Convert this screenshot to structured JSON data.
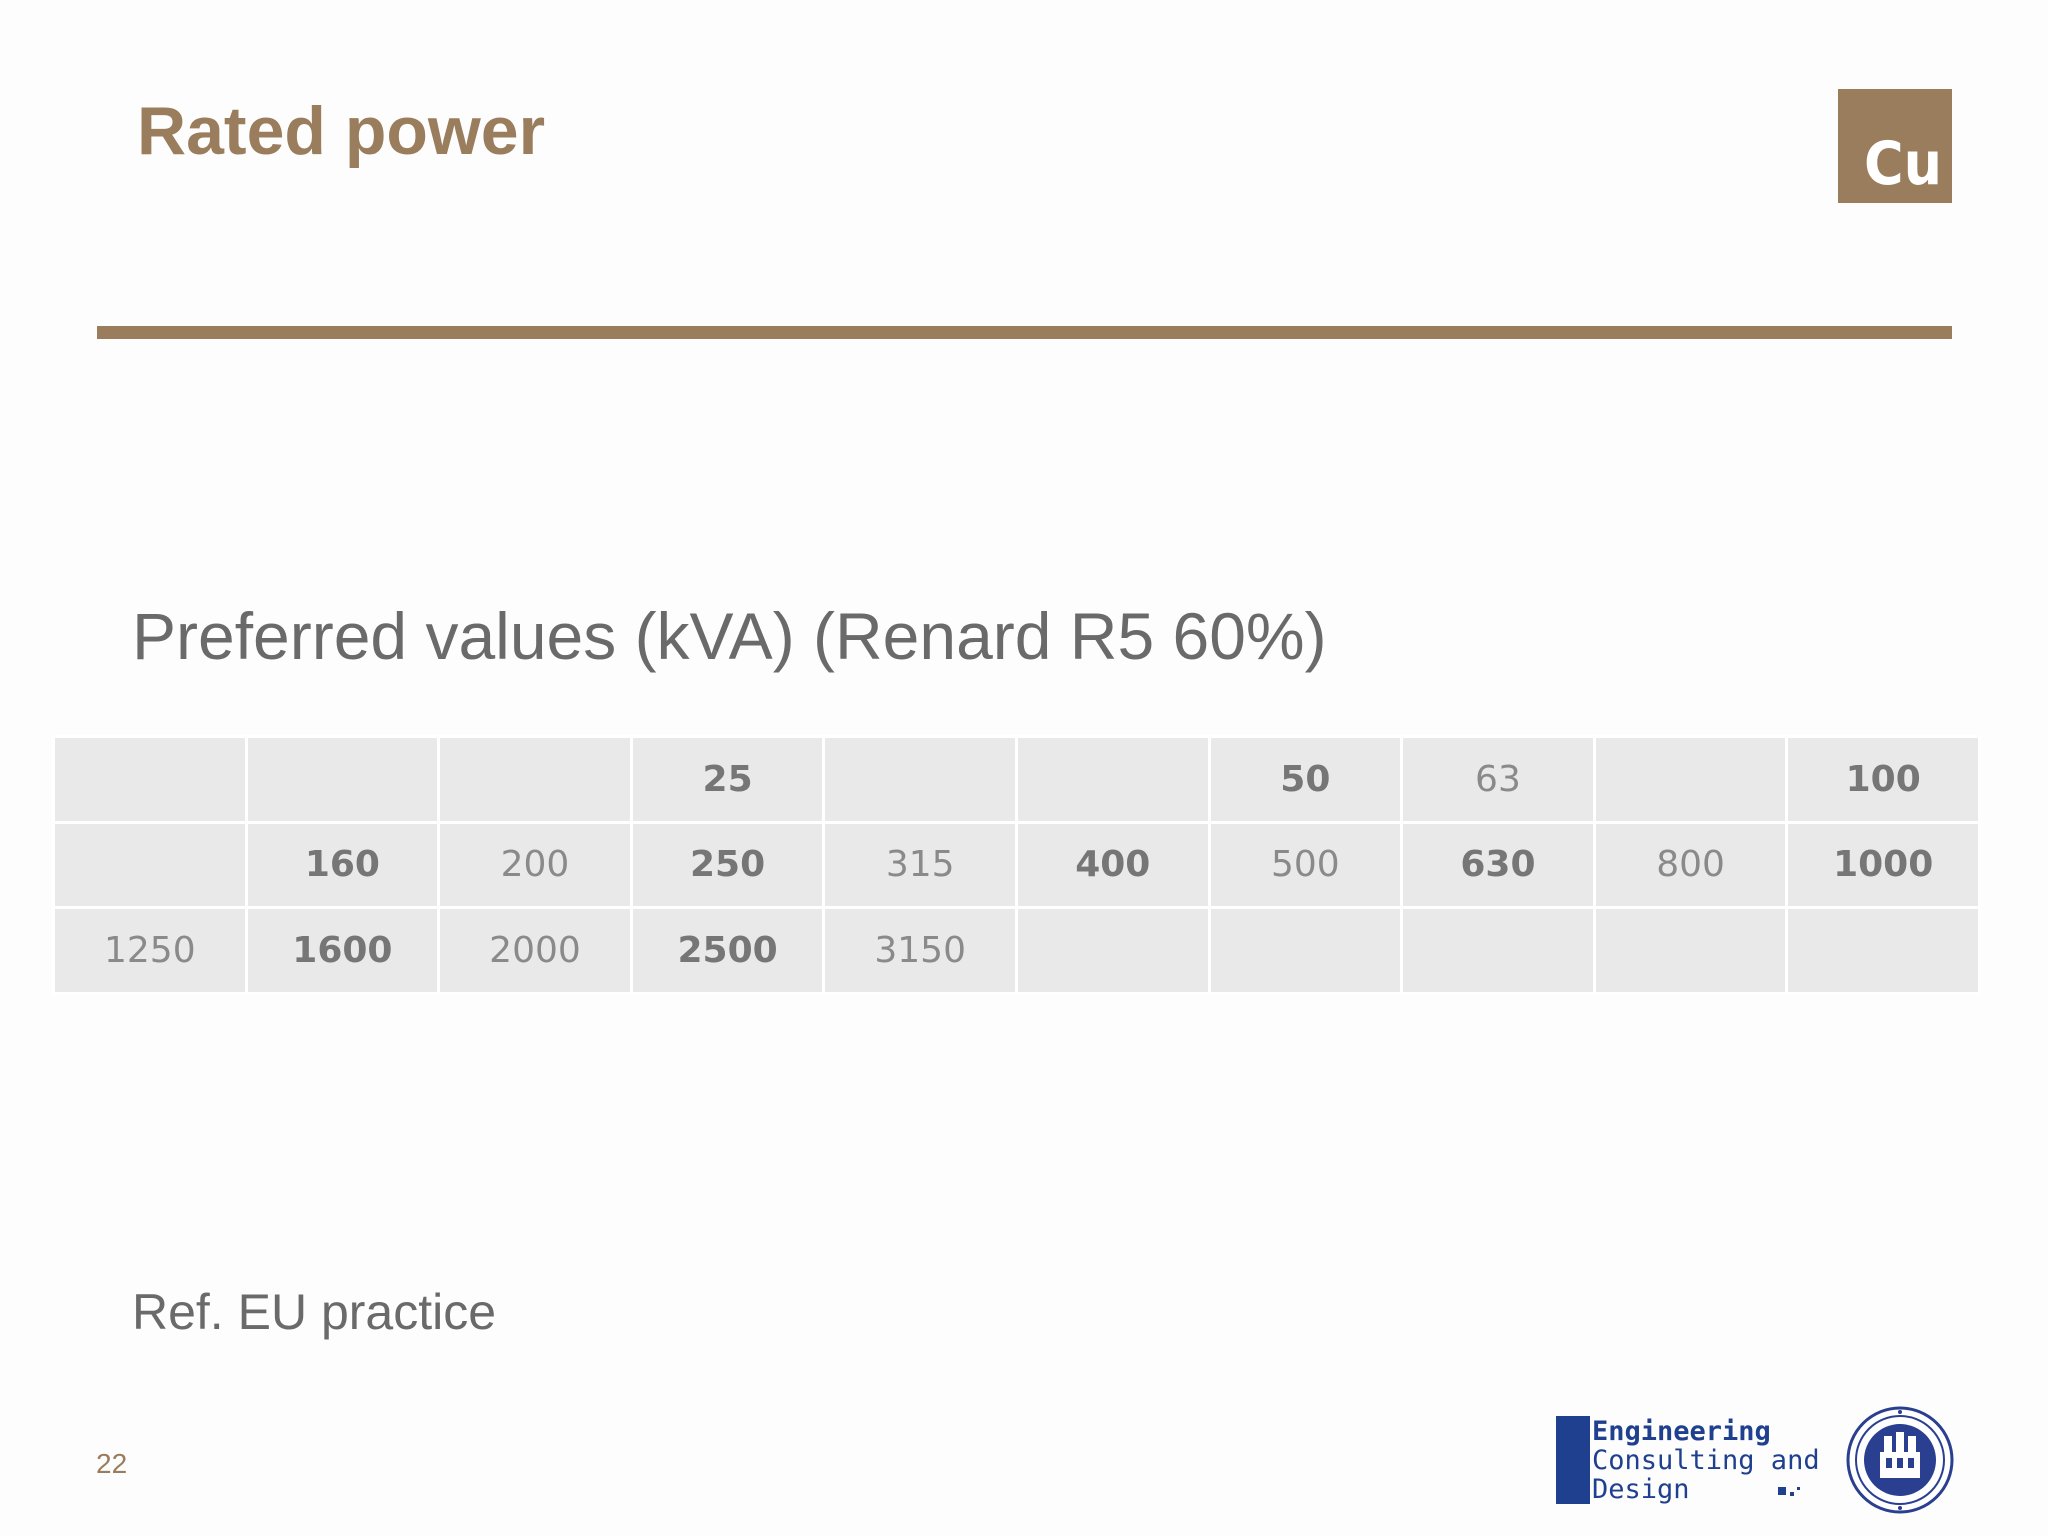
{
  "slide": {
    "title": "Rated power",
    "badge": "Cu",
    "subtitle": "Preferred values (kVA) (Renard R5 60%)",
    "footer_ref": "Ref. EU practice",
    "page_number": "22"
  },
  "table": {
    "rows": [
      [
        {
          "text": "",
          "bold": false
        },
        {
          "text": "",
          "bold": false
        },
        {
          "text": "",
          "bold": false
        },
        {
          "text": "25",
          "bold": true
        },
        {
          "text": "",
          "bold": false
        },
        {
          "text": "",
          "bold": false
        },
        {
          "text": "50",
          "bold": true
        },
        {
          "text": "63",
          "bold": false
        },
        {
          "text": "",
          "bold": false
        },
        {
          "text": "100",
          "bold": true
        }
      ],
      [
        {
          "text": "",
          "bold": false
        },
        {
          "text": "160",
          "bold": true
        },
        {
          "text": "200",
          "bold": false
        },
        {
          "text": "250",
          "bold": true
        },
        {
          "text": "315",
          "bold": false
        },
        {
          "text": "400",
          "bold": true
        },
        {
          "text": "500",
          "bold": false
        },
        {
          "text": "630",
          "bold": true
        },
        {
          "text": "800",
          "bold": false
        },
        {
          "text": "1000",
          "bold": true
        }
      ],
      [
        {
          "text": "1250",
          "bold": false
        },
        {
          "text": "1600",
          "bold": true
        },
        {
          "text": "2000",
          "bold": false
        },
        {
          "text": "2500",
          "bold": true
        },
        {
          "text": "3150",
          "bold": false
        },
        {
          "text": "",
          "bold": false
        },
        {
          "text": "",
          "bold": false
        },
        {
          "text": "",
          "bold": false
        },
        {
          "text": "",
          "bold": false
        },
        {
          "text": "",
          "bold": false
        }
      ]
    ]
  },
  "logo": {
    "line1": "Engineering",
    "line2": "Consulting and",
    "line3": "Design"
  },
  "colors": {
    "accent": "#9a7d5c",
    "text_gray": "#6a6a6a",
    "cell_bg": "#e9e9ea",
    "logo_blue": "#1f3f8f"
  },
  "icons": {
    "badge": "cu-element-badge",
    "logo": "ecd-logo",
    "seal": "university-seal-icon"
  }
}
